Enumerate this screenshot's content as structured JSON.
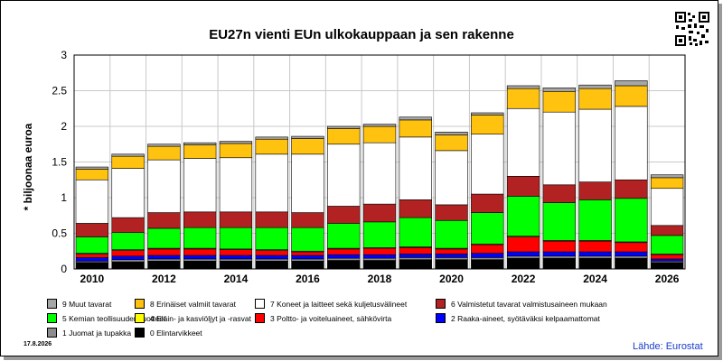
{
  "title": "EU27n vienti EUn ulkokauppaan ja sen rakenne",
  "ylabel": "* biljoonaa euroa",
  "date": "17.8.2026",
  "source": "Lähde: Eurostat",
  "chart_data": {
    "type": "bar",
    "stacked": true,
    "title": "EU27n vienti EUn ulkokauppaan ja sen rakenne",
    "ylabel": "* biljoonaa euroa",
    "ylim": [
      0,
      3
    ],
    "yticks": [
      "0",
      "0.5",
      "1",
      "1.5",
      "2",
      "2.5",
      "3"
    ],
    "grid": true,
    "legend_position": "bottom",
    "categories": [
      "2010",
      "2011",
      "2012",
      "2013",
      "2014",
      "2015",
      "2016",
      "2017",
      "2018",
      "2019",
      "2020",
      "2021",
      "2022",
      "2023",
      "2024",
      "2025",
      "2026"
    ],
    "xtick_labels": [
      "2010",
      "",
      "2012",
      "",
      "2014",
      "",
      "2016",
      "",
      "2018",
      "",
      "2020",
      "",
      "2022",
      "",
      "2024",
      "",
      "2026"
    ],
    "series": [
      {
        "name": "0 Elintarvikkeet",
        "color": "#000000",
        "values": [
          0.09,
          0.1,
          0.11,
          0.11,
          0.11,
          0.11,
          0.11,
          0.12,
          0.12,
          0.13,
          0.13,
          0.13,
          0.15,
          0.15,
          0.15,
          0.15,
          0.09
        ]
      },
      {
        "name": "1 Juomat ja tupakka",
        "color": "#8c8c8c",
        "values": [
          0.02,
          0.03,
          0.03,
          0.03,
          0.03,
          0.03,
          0.03,
          0.03,
          0.03,
          0.03,
          0.03,
          0.03,
          0.03,
          0.03,
          0.03,
          0.03,
          0.02
        ]
      },
      {
        "name": "2 Raaka-aineet, syötäväksi kelpaamattomat",
        "color": "#0000ff",
        "values": [
          0.05,
          0.05,
          0.05,
          0.05,
          0.05,
          0.05,
          0.05,
          0.05,
          0.05,
          0.05,
          0.05,
          0.06,
          0.06,
          0.06,
          0.06,
          0.06,
          0.03
        ]
      },
      {
        "name": "3 Poltto- ja voiteluaineet, sähkövirta",
        "color": "#ff0000",
        "values": [
          0.05,
          0.08,
          0.09,
          0.09,
          0.08,
          0.07,
          0.05,
          0.08,
          0.09,
          0.09,
          0.07,
          0.12,
          0.21,
          0.15,
          0.15,
          0.13,
          0.06
        ]
      },
      {
        "name": "4 Eläin- ja kasviöljyt ja -rasvat",
        "color": "#ffff00",
        "values": [
          0.01,
          0.01,
          0.01,
          0.01,
          0.01,
          0.01,
          0.01,
          0.01,
          0.01,
          0.01,
          0.01,
          0.01,
          0.01,
          0.01,
          0.01,
          0.01,
          0.01
        ]
      },
      {
        "name": "5 Kemian teollisuuden tuotteet",
        "color": "#00ff00",
        "values": [
          0.23,
          0.24,
          0.28,
          0.29,
          0.3,
          0.31,
          0.33,
          0.35,
          0.36,
          0.41,
          0.39,
          0.44,
          0.56,
          0.53,
          0.57,
          0.61,
          0.26
        ]
      },
      {
        "name": "6 Valmistetut tavarat valmistusaineen mukaan",
        "color": "#b22222",
        "values": [
          0.19,
          0.21,
          0.22,
          0.22,
          0.22,
          0.22,
          0.21,
          0.24,
          0.25,
          0.25,
          0.22,
          0.26,
          0.28,
          0.25,
          0.25,
          0.26,
          0.14
        ]
      },
      {
        "name": "7 Koneet ja laitteet sekä kuljetusvälineet",
        "color": "#ffffff",
        "values": [
          0.61,
          0.69,
          0.74,
          0.75,
          0.76,
          0.81,
          0.82,
          0.87,
          0.86,
          0.88,
          0.76,
          0.84,
          0.95,
          1.02,
          1.02,
          1.03,
          0.52
        ]
      },
      {
        "name": "8 Erinäiset valmiit tavarat",
        "color": "#ffc20e",
        "values": [
          0.15,
          0.17,
          0.19,
          0.19,
          0.2,
          0.21,
          0.22,
          0.22,
          0.23,
          0.24,
          0.22,
          0.27,
          0.28,
          0.29,
          0.29,
          0.29,
          0.15
        ]
      },
      {
        "name": "9 Muut tavarat",
        "color": "#a6a6a6",
        "values": [
          0.03,
          0.03,
          0.03,
          0.03,
          0.03,
          0.03,
          0.03,
          0.03,
          0.03,
          0.04,
          0.04,
          0.03,
          0.04,
          0.05,
          0.05,
          0.07,
          0.04
        ]
      }
    ]
  },
  "legend_rows": [
    [
      "9 Muut tavarat",
      "8 Erinäiset valmiit tavarat",
      "7 Koneet ja laitteet sekä kuljetusvälineet",
      "6 Valmistetut tavarat valmistusaineen mukaan"
    ],
    [
      "5 Kemian teollisuuden tuotteet",
      "4 Eläin- ja kasviöljyt ja -rasvat",
      "3 Poltto- ja voiteluaineet, sähkövirta",
      "2 Raaka-aineet, syötäväksi kelpaamattomat"
    ],
    [
      "1 Juomat ja tupakka",
      "0 Elintarvikkeet"
    ]
  ]
}
